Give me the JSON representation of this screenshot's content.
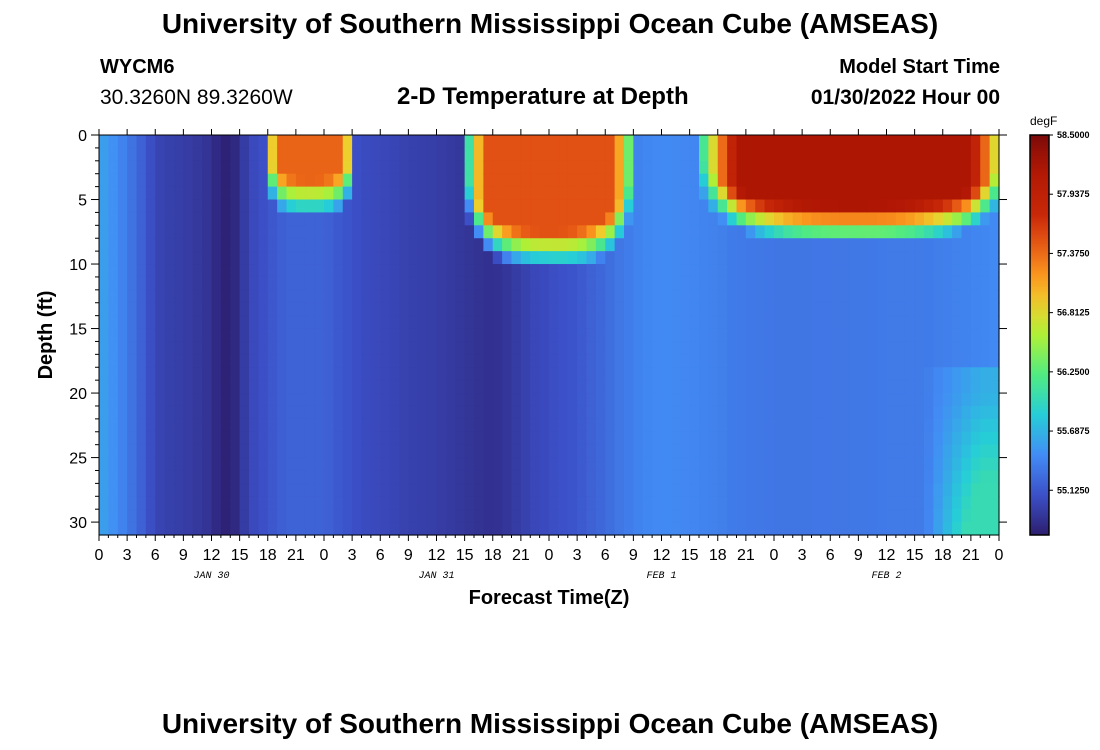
{
  "header": {
    "title": "University of Southern Mississippi Ocean Cube (AMSEAS)",
    "station_id": "WYCM6",
    "coordinates": "30.3260N  89.3260W",
    "plot_title": "2-D Temperature at Depth",
    "model_start_label": "Model Start Time",
    "model_start_date": "01/30/2022 Hour 00"
  },
  "footer": {
    "title": "University of Southern Mississippi Ocean Cube (AMSEAS)"
  },
  "colors": {
    "cold": "#2c1e6e",
    "warm": "#8b0a0a",
    "background": "#ffffff"
  },
  "chart_data": {
    "type": "heatmap",
    "title": "2-D Temperature at Depth",
    "xlabel": "Forecast Time(Z)",
    "ylabel": "Depth (ft)",
    "xlim": [
      0,
      96
    ],
    "ylim": [
      0,
      31
    ],
    "x_tick_hours": [
      0,
      3,
      6,
      9,
      12,
      15,
      18,
      21,
      24,
      27,
      30,
      33,
      36,
      39,
      42,
      45,
      48,
      51,
      54,
      57,
      60,
      63,
      66,
      69,
      72,
      75,
      78,
      81,
      84,
      87,
      90,
      93,
      96
    ],
    "x_tick_labels": [
      "0",
      "3",
      "6",
      "9",
      "12",
      "15",
      "18",
      "21",
      "0",
      "3",
      "6",
      "9",
      "12",
      "15",
      "18",
      "21",
      "0",
      "3",
      "6",
      "9",
      "12",
      "15",
      "18",
      "21",
      "0",
      "3",
      "6",
      "9",
      "12",
      "15",
      "18",
      "21",
      "0"
    ],
    "y_ticks": [
      0,
      5,
      10,
      15,
      20,
      25,
      30
    ],
    "y_tick_labels": [
      "0",
      "5",
      "10",
      "15",
      "20",
      "25",
      "30"
    ],
    "date_labels": [
      {
        "hour": 12,
        "label": "JAN 30"
      },
      {
        "hour": 36,
        "label": "JAN 31"
      },
      {
        "hour": 60,
        "label": "FEB 1"
      },
      {
        "hour": 84,
        "label": "FEB 2"
      }
    ],
    "colorbar": {
      "unit": "degF",
      "min": 54.7,
      "max": 58.5,
      "ticks": [
        58.5,
        57.9375,
        57.375,
        56.8125,
        56.25,
        55.6875,
        55.125
      ],
      "tick_labels": [
        "58.5000",
        "57.9375",
        "57.3750",
        "56.8125",
        "56.2500",
        "55.6875",
        "55.1250"
      ]
    },
    "time_profile_hours": [
      0,
      2,
      4,
      6,
      8,
      10,
      12,
      13,
      14,
      15,
      16,
      18,
      20,
      22,
      24,
      26,
      28,
      30,
      33,
      36,
      39,
      42,
      44,
      46,
      48,
      51,
      54,
      56,
      58,
      60,
      64,
      68,
      72,
      76,
      80,
      84,
      88,
      92,
      94,
      96
    ],
    "time_profile_degF": [
      55.6,
      55.45,
      55.25,
      55.0,
      54.95,
      54.92,
      54.85,
      54.74,
      54.72,
      54.85,
      55.0,
      55.1,
      55.2,
      55.2,
      55.2,
      55.12,
      55.05,
      55.02,
      54.97,
      54.94,
      54.88,
      54.84,
      54.9,
      55.0,
      55.05,
      55.12,
      55.25,
      55.35,
      55.42,
      55.45,
      55.42,
      55.35,
      55.32,
      55.32,
      55.33,
      55.35,
      55.35,
      55.4,
      55.42,
      55.45
    ],
    "surface_warm_events": [
      {
        "start_hour": 19,
        "end_hour": 26,
        "max_depth_ft": 3.5,
        "peak_degF": 57.4
      },
      {
        "start_hour": 40,
        "end_hour": 56,
        "max_depth_ft": 7.5,
        "peak_degF": 57.5
      },
      {
        "start_hour": 65,
        "end_hour": 96,
        "max_depth_ft": 5.5,
        "peak_degF": 58.2
      }
    ],
    "bottom_warm_event": {
      "start_hour": 90,
      "end_hour": 96,
      "min_depth_ft": 20,
      "peak_degF": 56.0
    }
  }
}
